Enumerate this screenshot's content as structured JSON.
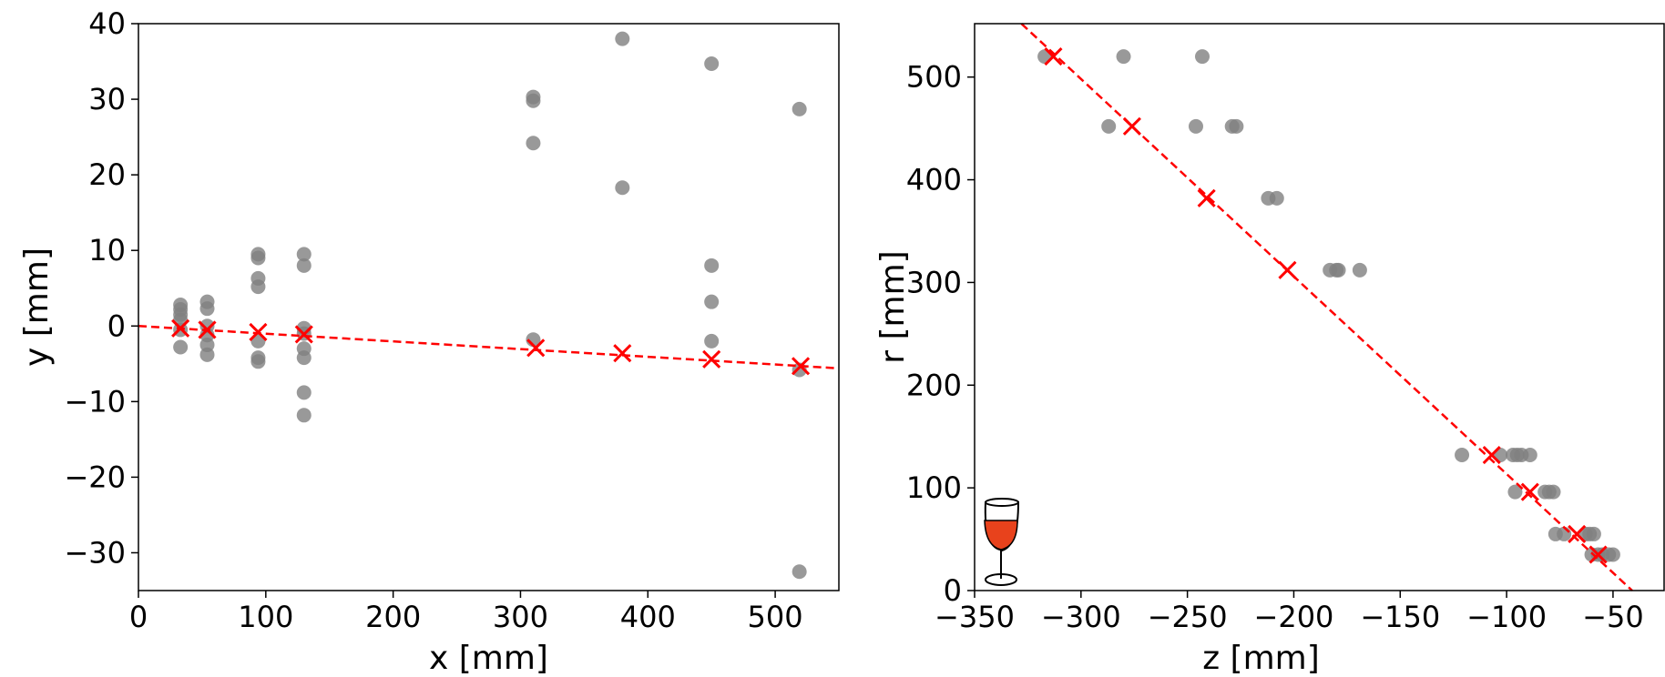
{
  "chart_data": [
    {
      "type": "scatter",
      "xlabel": "x [mm]",
      "ylabel": "y [mm]",
      "xlim": [
        0,
        550
      ],
      "ylim": [
        -35,
        40
      ],
      "xticks": [
        0,
        100,
        200,
        300,
        400,
        500
      ],
      "yticks": [
        {
          "value": -30,
          "label": "−30"
        },
        {
          "value": -20,
          "label": "−20"
        },
        {
          "value": -10,
          "label": "−10"
        },
        0,
        10,
        20,
        30,
        40
      ],
      "series": [
        {
          "color": "#808080",
          "marker": "o",
          "x": [
            33,
            33,
            33,
            33,
            33,
            33,
            54,
            54,
            54,
            54,
            54,
            54,
            94,
            94,
            94,
            94,
            94,
            94,
            94,
            130,
            130,
            130,
            130,
            130,
            130,
            130,
            130,
            310,
            310,
            310,
            310,
            380,
            380,
            450,
            450,
            450,
            450,
            519,
            519,
            519
          ],
          "values": [
            2.8,
            2.2,
            1.5,
            0.8,
            -0.5,
            -2.8,
            3.2,
            2.3,
            0,
            -1.2,
            -2.5,
            -3.8,
            9.5,
            9.0,
            6.3,
            5.2,
            -2.0,
            -4.2,
            -4.7,
            9.5,
            8.0,
            -0.3,
            -1.0,
            -3.0,
            -4.2,
            -8.8,
            -11.8,
            30.3,
            29.8,
            24.2,
            -1.8,
            38,
            18.3,
            34.7,
            8.0,
            3.2,
            -2.0,
            28.7,
            -5.8,
            -32.5
          ]
        },
        {
          "color": "#ff0000",
          "marker": "x",
          "x": [
            33,
            54,
            94,
            130,
            312,
            380,
            450,
            520
          ],
          "values": [
            -0.3,
            -0.5,
            -0.8,
            -1.1,
            -2.9,
            -3.6,
            -4.4,
            -5.3
          ]
        },
        {
          "color": "#ff0000",
          "linestyle": "dashed",
          "x": [
            0,
            550
          ],
          "values": [
            0,
            -5.6
          ]
        }
      ]
    },
    {
      "type": "scatter",
      "xlabel": "z [mm]",
      "ylabel": "r [mm]",
      "xlim": [
        -350,
        -26
      ],
      "ylim": [
        0,
        552
      ],
      "xticks": [
        {
          "value": -350,
          "label": "−350"
        },
        {
          "value": -300,
          "label": "−300"
        },
        {
          "value": -250,
          "label": "−250"
        },
        {
          "value": -200,
          "label": "−200"
        },
        {
          "value": -150,
          "label": "−150"
        },
        {
          "value": -100,
          "label": "−100"
        },
        {
          "value": -50,
          "label": "−50"
        }
      ],
      "yticks": [
        0,
        100,
        200,
        300,
        400,
        500
      ],
      "series": [
        {
          "color": "#808080",
          "marker": "o",
          "x": [
            -317,
            -280,
            -243,
            -287,
            -246,
            -229,
            -227,
            -212,
            -208,
            -183,
            -180,
            -179,
            -169,
            -121,
            -103,
            -97,
            -95,
            -93,
            -89,
            -96,
            -82,
            -80,
            -78,
            -77,
            -73,
            -63,
            -61,
            -59,
            -60,
            -57,
            -55,
            -52,
            -50
          ],
          "values": [
            520,
            520,
            520,
            452,
            452,
            452,
            452,
            382,
            382,
            312,
            312,
            312,
            312,
            132,
            132,
            132,
            132,
            132,
            132,
            96,
            96,
            96,
            96,
            55,
            55,
            55,
            55,
            55,
            35,
            35,
            35,
            35,
            35
          ]
        },
        {
          "color": "#ff0000",
          "marker": "x",
          "x": [
            -313,
            -276,
            -241,
            -203,
            -107,
            -89,
            -67,
            -57
          ],
          "values": [
            520,
            452,
            382,
            312,
            132,
            96,
            55,
            35
          ]
        },
        {
          "color": "#ff0000",
          "linestyle": "dashed",
          "x": [
            -328,
            -41
          ],
          "values": [
            552,
            0
          ]
        }
      ]
    }
  ]
}
